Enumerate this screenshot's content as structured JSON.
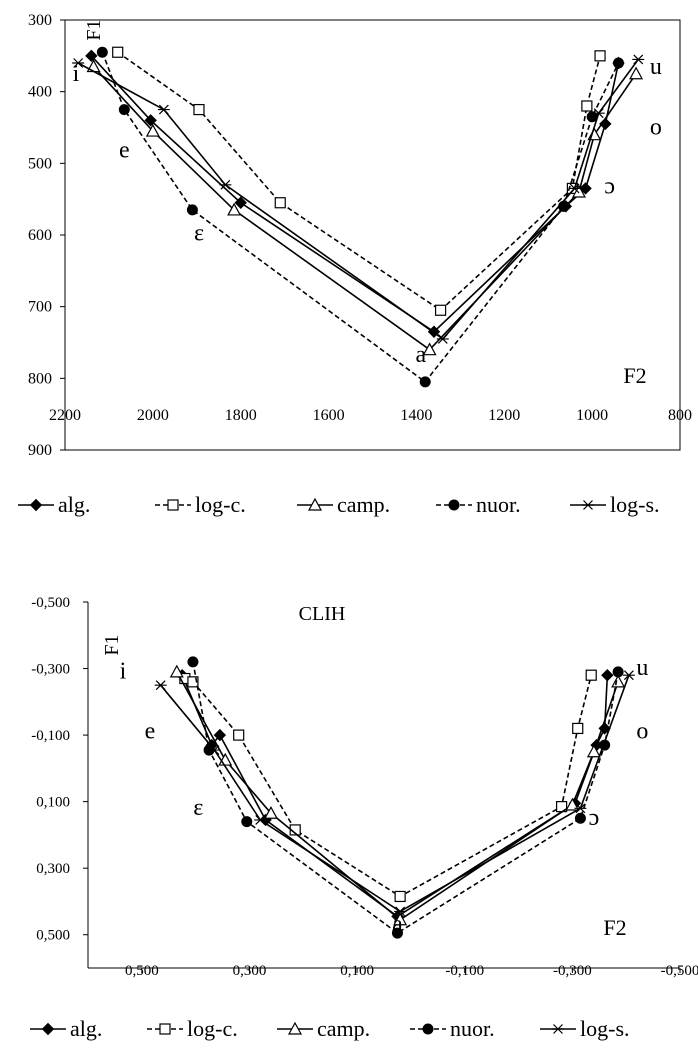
{
  "chart_data": [
    {
      "type": "line",
      "title": "",
      "ylabel": "F1",
      "xlabel": "F2",
      "x_ticks": [
        "2200",
        "2000",
        "1800",
        "1600",
        "1400",
        "1200",
        "1000",
        "800"
      ],
      "y_ticks": [
        "300",
        "400",
        "500",
        "600",
        "700",
        "800",
        "900"
      ],
      "xlim": [
        2200,
        800
      ],
      "ylim": [
        300,
        900
      ],
      "x_reversed": true,
      "y_reversed": true,
      "grid": false,
      "legend_position": "bottom",
      "vowel_labels": [
        {
          "text": "i",
          "x": 2175,
          "y": 385
        },
        {
          "text": "e",
          "x": 2065,
          "y": 492
        },
        {
          "text": "ε",
          "x": 1895,
          "y": 608
        },
        {
          "text": "a",
          "x": 1390,
          "y": 777
        },
        {
          "text": "ɔ",
          "x": 960,
          "y": 542
        },
        {
          "text": "o",
          "x": 855,
          "y": 460
        },
        {
          "text": "u",
          "x": 855,
          "y": 375
        }
      ],
      "series": [
        {
          "name": "alg.",
          "line": "solid",
          "marker": "diamond",
          "x": [
            2140,
            2005,
            1800,
            1360,
            1060,
            1015,
            970,
            940
          ],
          "y": [
            350,
            440,
            555,
            735,
            560,
            535,
            445,
            360
          ]
        },
        {
          "name": "log-c.",
          "line": "dashed",
          "marker": "open-square",
          "x": [
            2080,
            1895,
            1710,
            1345,
            1045,
            1012,
            982
          ],
          "y": [
            345,
            425,
            555,
            705,
            535,
            420,
            350
          ]
        },
        {
          "name": "camp.",
          "line": "solid",
          "marker": "open-triangle",
          "x": [
            2135,
            2000,
            1815,
            1370,
            1030,
            995,
            900
          ],
          "y": [
            365,
            455,
            565,
            760,
            540,
            460,
            375
          ]
        },
        {
          "name": "nuor.",
          "line": "dashed",
          "marker": "circle",
          "x": [
            2115,
            2065,
            1910,
            1380,
            1065,
            1000,
            940
          ],
          "y": [
            345,
            425,
            565,
            805,
            560,
            435,
            360
          ]
        },
        {
          "name": "log-s.",
          "line": "solid",
          "marker": "asterisk",
          "x": [
            2170,
            1975,
            1835,
            1340,
            1040,
            985,
            895
          ],
          "y": [
            360,
            425,
            530,
            745,
            535,
            430,
            355
          ]
        }
      ]
    },
    {
      "type": "line",
      "title": "CLIH",
      "ylabel": "F1",
      "xlabel": "F2",
      "x_ticks": [
        "0,500",
        "0,300",
        "0,100",
        "-0,100",
        "-0,300",
        "-0,500"
      ],
      "y_ticks": [
        "-0,500",
        "-0,300",
        "-0,100",
        "0,100",
        "0,300",
        "0,500"
      ],
      "xlim": [
        0.6,
        -0.5
      ],
      "ylim": [
        -0.5,
        0.6
      ],
      "x_reversed": true,
      "y_reversed": true,
      "grid": false,
      "legend_position": "bottom",
      "vowel_labels": [
        {
          "text": "i",
          "x": 0.535,
          "y": -0.27
        },
        {
          "text": "e",
          "x": 0.485,
          "y": -0.09
        },
        {
          "text": "ε",
          "x": 0.395,
          "y": 0.14
        },
        {
          "text": "a",
          "x": 0.025,
          "y": 0.49
        },
        {
          "text": "ɔ",
          "x": -0.34,
          "y": 0.17
        },
        {
          "text": "o",
          "x": -0.43,
          "y": -0.09
        },
        {
          "text": "u",
          "x": -0.43,
          "y": -0.28
        }
      ],
      "series": [
        {
          "name": "alg.",
          "line": "solid",
          "marker": "diamond",
          "x": [
            0.425,
            0.37,
            0.355,
            0.27,
            0.025,
            -0.305,
            -0.345,
            -0.36,
            -0.365
          ],
          "y": [
            -0.28,
            -0.07,
            -0.1,
            0.155,
            0.445,
            0.105,
            -0.07,
            -0.12,
            -0.28
          ]
        },
        {
          "name": "log-c.",
          "line": "dashed",
          "marker": "open-square",
          "x": [
            0.42,
            0.405,
            0.32,
            0.215,
            0.02,
            -0.28,
            -0.31,
            -0.335
          ],
          "y": [
            -0.27,
            -0.26,
            -0.1,
            0.185,
            0.385,
            0.115,
            -0.12,
            -0.28
          ]
        },
        {
          "name": "camp.",
          "line": "solid",
          "marker": "open-triangle",
          "x": [
            0.435,
            0.345,
            0.26,
            0.02,
            -0.3,
            -0.34,
            -0.385
          ],
          "y": [
            -0.29,
            -0.025,
            0.135,
            0.455,
            0.11,
            -0.05,
            -0.26
          ]
        },
        {
          "name": "nuor.",
          "line": "dashed",
          "marker": "circle",
          "x": [
            0.405,
            0.375,
            0.305,
            0.025,
            -0.315,
            -0.36,
            -0.385
          ],
          "y": [
            -0.32,
            -0.055,
            0.16,
            0.495,
            0.15,
            -0.07,
            -0.29
          ]
        },
        {
          "name": "log-s.",
          "line": "solid",
          "marker": "asterisk",
          "x": [
            0.465,
            0.365,
            0.28,
            0.02,
            -0.315,
            -0.405
          ],
          "y": [
            -0.25,
            -0.055,
            0.155,
            0.43,
            0.12,
            -0.28
          ]
        }
      ]
    }
  ]
}
